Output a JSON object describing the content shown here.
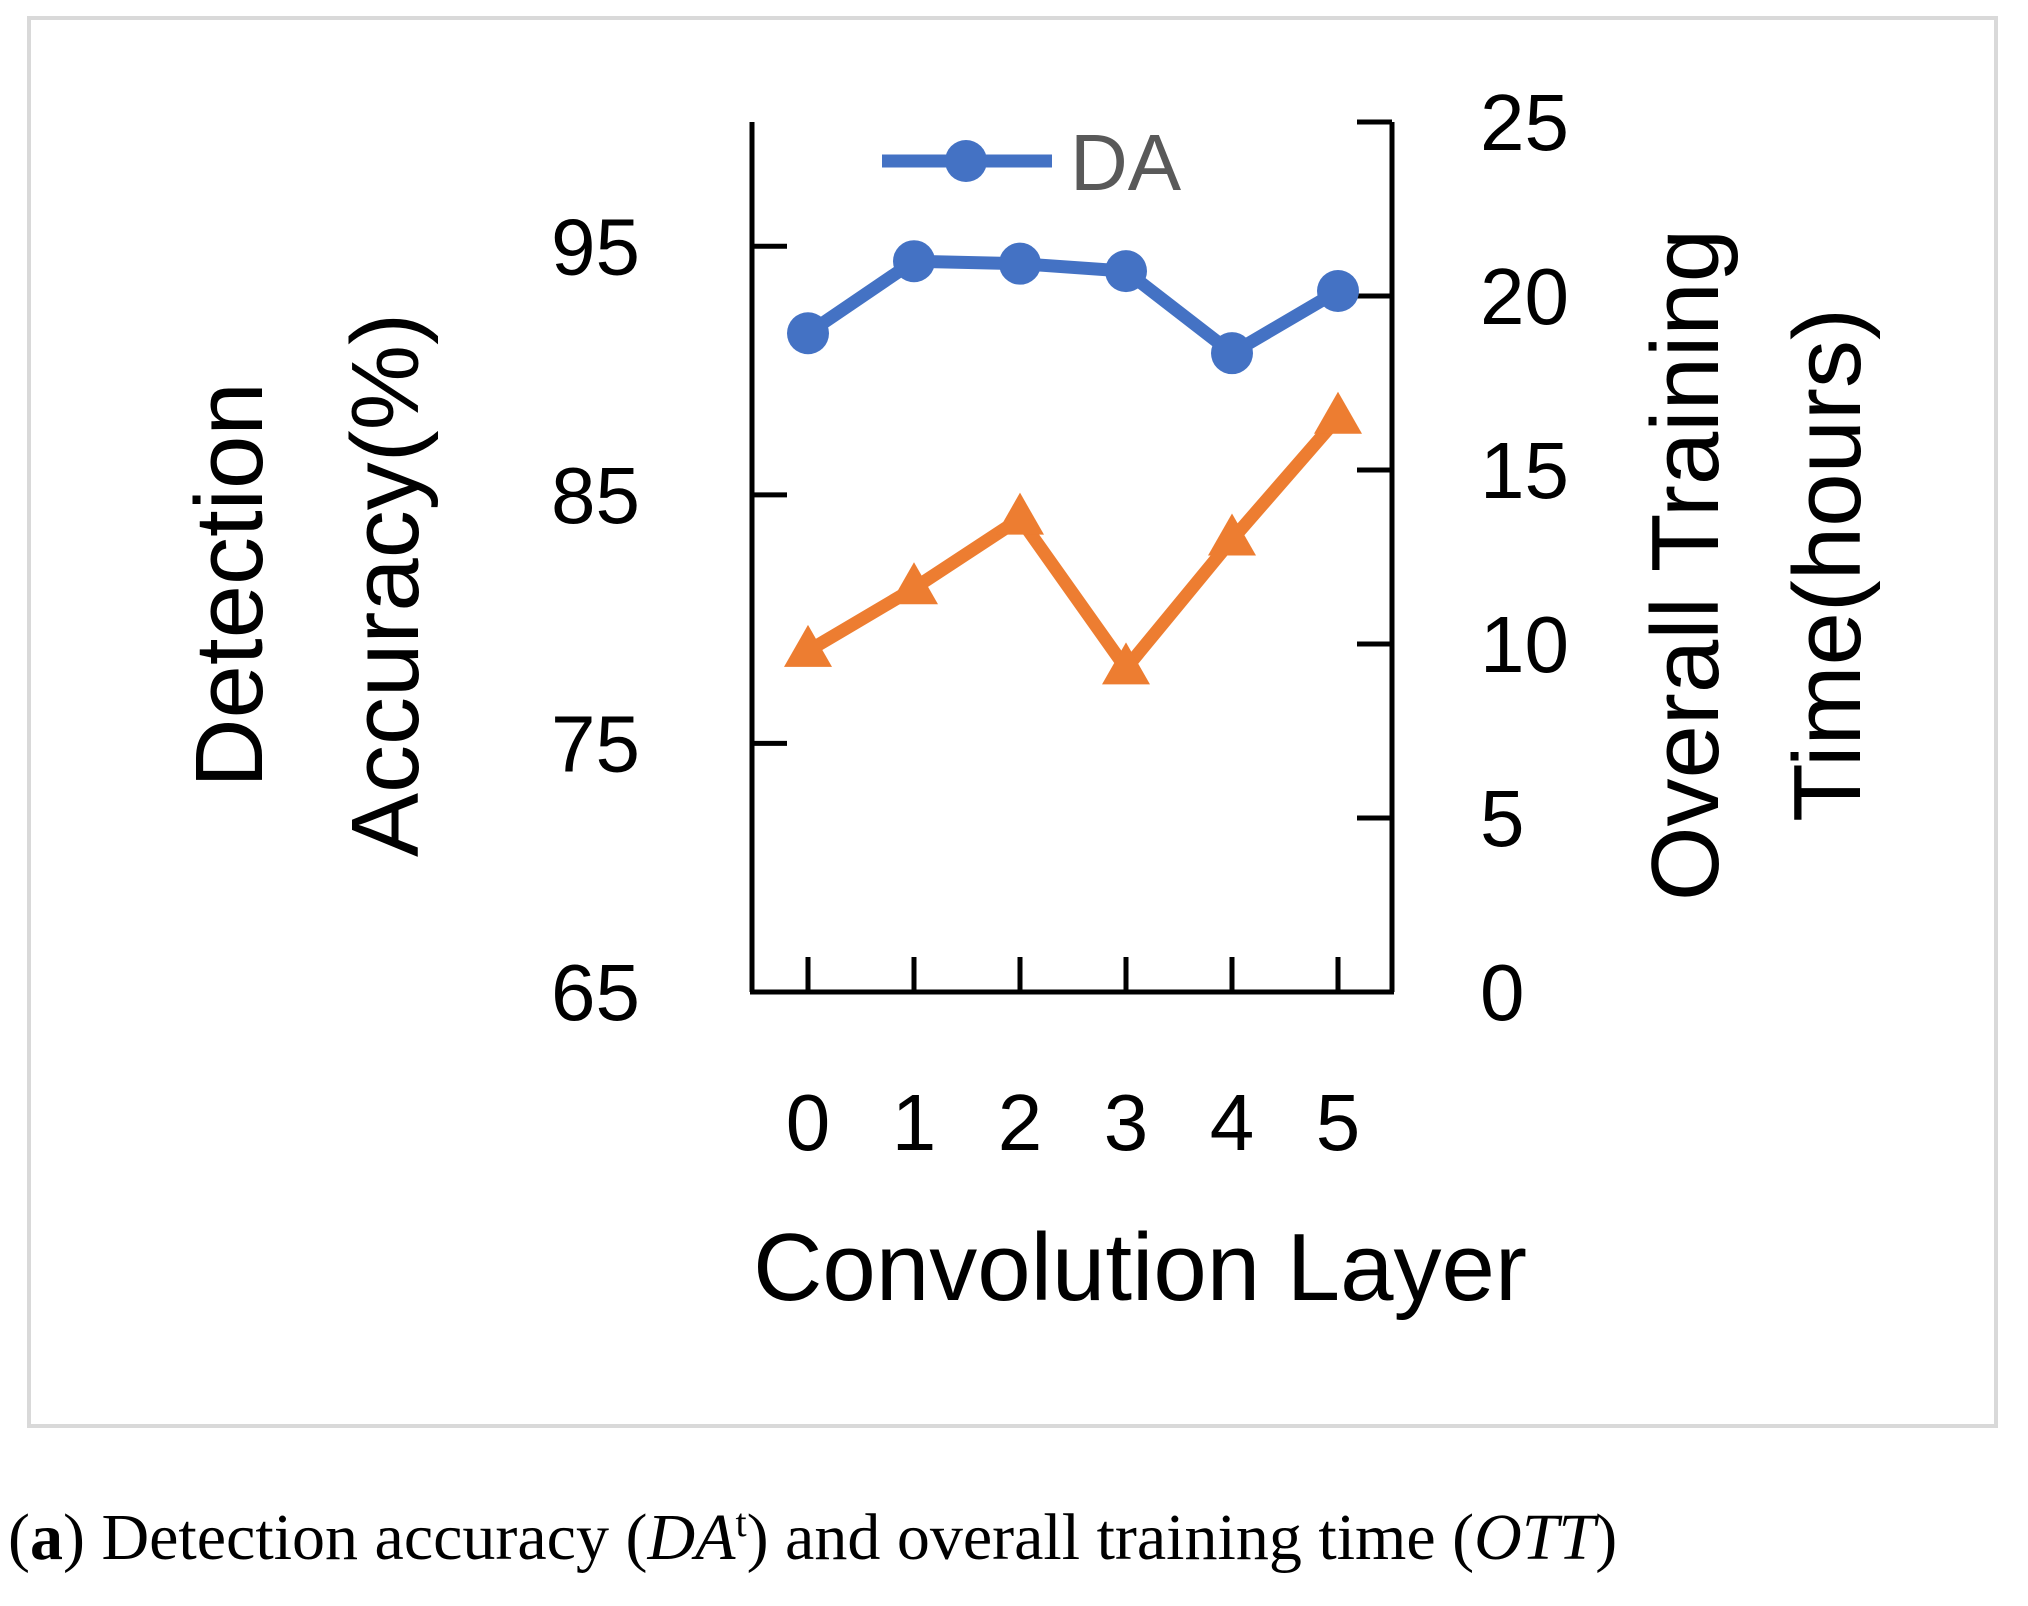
{
  "chart_data": {
    "type": "line",
    "categories": [
      "0",
      "1",
      "2",
      "3",
      "4",
      "5"
    ],
    "xlabel": "Convolution Layer",
    "ylabel_left": [
      "Detection",
      "Accuracy(%)"
    ],
    "ylabel_right": [
      "Overall Training",
      "Time(hours)"
    ],
    "ylim_left": [
      65,
      100
    ],
    "yticks_left": [
      65,
      75,
      85,
      95
    ],
    "ylim_right": [
      0,
      25
    ],
    "yticks_right": [
      0,
      5,
      10,
      15,
      20,
      25
    ],
    "series": [
      {
        "name": "DA",
        "axis": "left",
        "marker": "circle",
        "color": "#4472c4",
        "values": [
          91.5,
          94.4,
          94.3,
          94.0,
          90.7,
          93.2
        ]
      },
      {
        "name": "OTT",
        "axis": "right",
        "marker": "triangle",
        "color": "#ed7d31",
        "values": [
          9.8,
          11.6,
          13.6,
          9.3,
          13.0,
          16.5
        ]
      }
    ],
    "legend": {
      "entries": [
        "DA"
      ],
      "placement": "top"
    },
    "grid": false
  },
  "caption": {
    "label": "a",
    "text_1": " Detection accuracy (",
    "math_1": "DA",
    "sup_1": "t",
    "text_2": ") and overall training time (",
    "math_2": "OTT",
    "text_3": ")"
  }
}
